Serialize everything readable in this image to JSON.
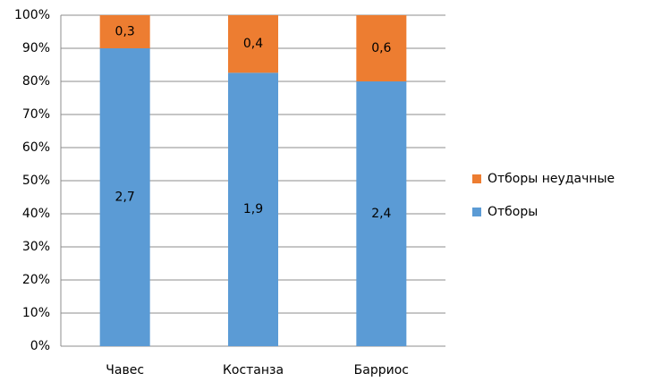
{
  "chart_data": {
    "type": "bar",
    "stacking": "percent",
    "categories": [
      "Чавес",
      "Костанза",
      "Барриос"
    ],
    "series": [
      {
        "name": "Отборы",
        "color": "#5b9bd5",
        "values": [
          2.7,
          1.9,
          2.4
        ],
        "value_labels": [
          "2,7",
          "1,9",
          "2,4"
        ]
      },
      {
        "name": "Отборы неудачные",
        "color": "#ed7d31",
        "values": [
          0.3,
          0.4,
          0.6
        ],
        "value_labels": [
          "0,3",
          "0,4",
          "0,6"
        ]
      }
    ],
    "ylim": [
      0,
      100
    ],
    "yticks": [
      {
        "value": 0,
        "label": "0%"
      },
      {
        "value": 10,
        "label": "10%"
      },
      {
        "value": 20,
        "label": "20%"
      },
      {
        "value": 30,
        "label": "30%"
      },
      {
        "value": 40,
        "label": "40%"
      },
      {
        "value": 50,
        "label": "50%"
      },
      {
        "value": 60,
        "label": "60%"
      },
      {
        "value": 70,
        "label": "70%"
      },
      {
        "value": 80,
        "label": "80%"
      },
      {
        "value": 90,
        "label": "90%"
      },
      {
        "value": 100,
        "label": "100%"
      }
    ],
    "grid": true,
    "legend": "right"
  }
}
